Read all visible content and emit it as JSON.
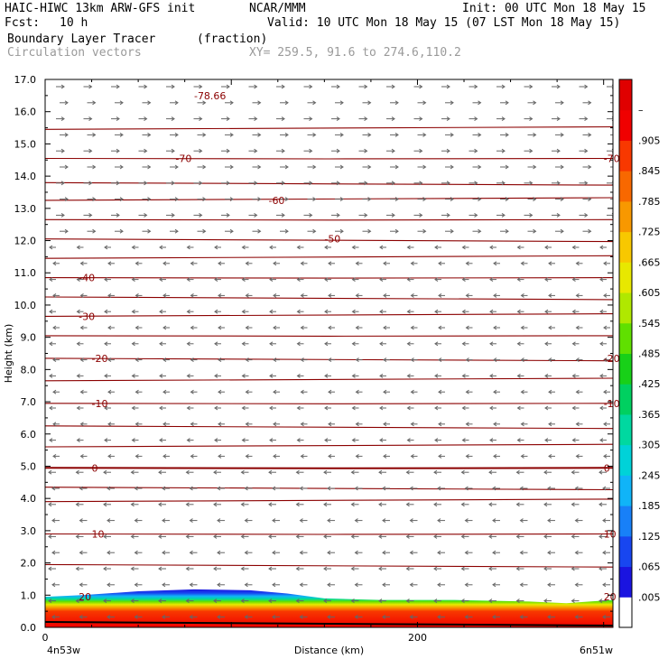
{
  "header": {
    "model": "HAIC-HIWC 13km ARW-GFS init",
    "org": "NCAR/MMM",
    "init": "Init: 00 UTC Mon 18 May 15",
    "fcst_label": "Fcst:",
    "fcst_value": "10 h",
    "valid": "Valid: 10 UTC Mon 18 May 15 (07 LST Mon 18 May 15)",
    "field1": "Boundary Layer Tracer",
    "field1_units": "(fraction)",
    "field2": "Circulation vectors",
    "xy": "XY= 259.5, 91.6 to 274.6,110.2"
  },
  "chart_data": {
    "type": "heatmap",
    "xlabel": "Distance (km)",
    "ylabel": "Height (km)",
    "xlim": [
      0,
      305
    ],
    "ylim": [
      0,
      17
    ],
    "x_ticks": [
      {
        "value": 0,
        "label": "0"
      },
      {
        "value": 200,
        "label": "200"
      }
    ],
    "x_end_labels": {
      "left": "4n53w",
      "right": "6n51w"
    },
    "y_ticks": [
      "0.0",
      "1.0",
      "2.0",
      "3.0",
      "4.0",
      "5.0",
      "6.0",
      "7.0",
      "8.0",
      "9.0",
      "10.0",
      "11.0",
      "12.0",
      "13.0",
      "14.0",
      "15.0",
      "16.0",
      "17.0"
    ],
    "colorbar": {
      "labels": [
        ".005",
        ".065",
        ".125",
        ".185",
        ".245",
        ".305",
        ".365",
        ".425",
        ".485",
        ".545",
        ".605",
        ".665",
        ".725",
        ".785",
        ".845",
        ".905",
        "–"
      ],
      "colors": [
        "#ffffff",
        "#1a14e0",
        "#1846f0",
        "#1880f8",
        "#10b4f8",
        "#00d2d8",
        "#00d8a0",
        "#00d060",
        "#18d018",
        "#60e000",
        "#b0e800",
        "#e8e800",
        "#f8c800",
        "#f89800",
        "#f86800",
        "#f83800",
        "#f00000",
        "#e00000"
      ]
    },
    "tracer_top_km": [
      {
        "x": 0,
        "y": 0.95
      },
      {
        "x": 20,
        "y": 1.0
      },
      {
        "x": 50,
        "y": 1.12
      },
      {
        "x": 80,
        "y": 1.18
      },
      {
        "x": 110,
        "y": 1.15
      },
      {
        "x": 130,
        "y": 1.05
      },
      {
        "x": 150,
        "y": 0.9
      },
      {
        "x": 180,
        "y": 0.85
      },
      {
        "x": 220,
        "y": 0.85
      },
      {
        "x": 260,
        "y": 0.8
      },
      {
        "x": 280,
        "y": 0.75
      },
      {
        "x": 305,
        "y": 0.85
      }
    ],
    "temperature_contours": [
      {
        "label": "-78.66",
        "y": 16.5,
        "label_x": 80
      },
      {
        "label": "-70",
        "y": 14.55,
        "label_x": [
          70,
          300
        ]
      },
      {
        "label": "-60",
        "y": 13.25,
        "label_x": 120
      },
      {
        "label": "-50",
        "y": 12.05,
        "label_x": 150
      },
      {
        "label": "-40",
        "y": 10.85,
        "label_x": 18
      },
      {
        "label": "-30",
        "y": 9.65,
        "label_x": 18
      },
      {
        "label": "-20",
        "y": 8.35,
        "label_x": [
          25,
          300
        ]
      },
      {
        "label": "-10",
        "y": 6.95,
        "label_x": [
          25,
          300
        ]
      },
      {
        "label": "0",
        "y": 4.95,
        "label_x": [
          25,
          300
        ]
      },
      {
        "label": "10",
        "y": 2.9,
        "label_x": [
          25,
          300
        ]
      },
      {
        "label": "20",
        "y": 0.95,
        "label_x": [
          18,
          300
        ]
      }
    ],
    "contour_levels_km": [
      15.45,
      14.55,
      13.8,
      13.25,
      12.65,
      12.05,
      11.45,
      10.85,
      10.25,
      9.65,
      9.05,
      8.35,
      7.65,
      6.95,
      6.25,
      5.6,
      4.95,
      4.35,
      3.9,
      2.9,
      1.95
    ]
  }
}
